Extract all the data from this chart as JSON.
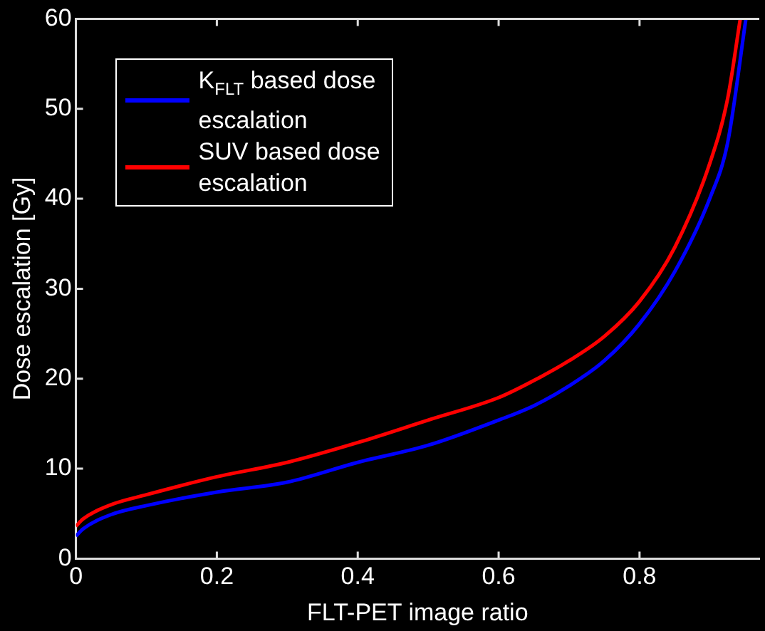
{
  "chart_data": {
    "type": "line",
    "xlabel": "FLT-PET image ratio",
    "ylabel": "Dose escalation [Gy]",
    "xlim": [
      0,
      0.97
    ],
    "xticks": [
      0,
      0.2,
      0.4,
      0.6,
      0.8
    ],
    "ylim": [
      0,
      60
    ],
    "yticks": [
      0,
      10,
      20,
      30,
      40,
      50,
      60
    ],
    "grid": false,
    "legend": "top left",
    "marker": "none",
    "line_style": "solid",
    "series": [
      {
        "name": "K$_{FLT}$ based dose escalation",
        "color": "#0000ff",
        "x": [
          0,
          0.01,
          0.05,
          0.1,
          0.2,
          0.3,
          0.4,
          0.5,
          0.6,
          0.65,
          0.7,
          0.75,
          0.8,
          0.85,
          0.9,
          0.925,
          0.951
        ],
        "values": [
          2.5,
          3.3,
          4.9,
          5.9,
          7.4,
          8.5,
          10.7,
          12.6,
          15.4,
          17,
          19.2,
          22,
          26.1,
          31.9,
          40.1,
          46.2,
          60
        ]
      },
      {
        "name": "SUV based dose escalation",
        "color": "#ff0000",
        "x": [
          0,
          0.01,
          0.05,
          0.1,
          0.2,
          0.3,
          0.4,
          0.5,
          0.6,
          0.65,
          0.7,
          0.75,
          0.8,
          0.85,
          0.9,
          0.925,
          0.943
        ],
        "values": [
          3.6,
          4.4,
          6,
          7.1,
          9.1,
          10.7,
          12.9,
          15.4,
          17.9,
          19.8,
          22,
          24.7,
          28.6,
          34.6,
          44,
          51.1,
          60
        ]
      }
    ]
  }
}
